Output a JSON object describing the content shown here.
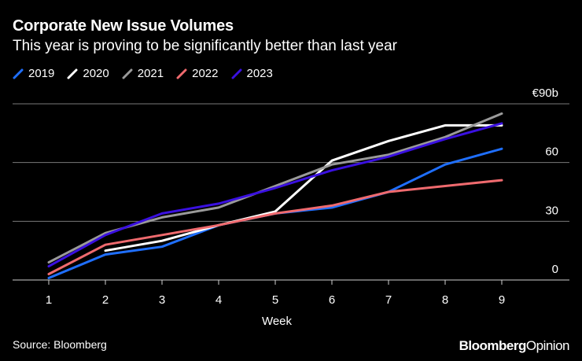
{
  "title": "Corporate New Issue Volumes",
  "subtitle": "This year is proving to be significantly better than last year",
  "source": "Source: Bloomberg",
  "brand": {
    "part1": "Bloomberg",
    "part2": "Opinion"
  },
  "colors": {
    "background": "#000000",
    "grid": "#7a7a7a",
    "text": "#ffffff",
    "s2019": "#1f6fff",
    "s2020": "#ffffff",
    "s2021": "#9a9a9a",
    "s2022": "#ef6a6e",
    "s2023": "#3a10e0"
  },
  "chart_data": {
    "type": "line",
    "title": "Corporate New Issue Volumes",
    "subtitle": "This year is proving to be significantly better than last year",
    "xlabel": "Week",
    "ylabel": "",
    "x": [
      1,
      2,
      3,
      4,
      5,
      6,
      7,
      8,
      9
    ],
    "ylim": [
      0,
      90
    ],
    "yticks": [
      0,
      30,
      60,
      90
    ],
    "ytick_labels": [
      "0",
      "30",
      "60",
      "€90b"
    ],
    "legend_position": "top-left",
    "grid": true,
    "series": [
      {
        "name": "2019",
        "color": "#1f6fff",
        "x": [
          1,
          2,
          3,
          4,
          5,
          6,
          7,
          8,
          9
        ],
        "values": [
          1,
          13,
          17,
          28,
          34,
          37,
          45,
          59,
          67
        ]
      },
      {
        "name": "2020",
        "color": "#ffffff",
        "x": [
          2,
          3,
          4,
          5,
          6,
          7,
          8,
          9
        ],
        "values": [
          15,
          20,
          28,
          35,
          61,
          71,
          79,
          79
        ]
      },
      {
        "name": "2021",
        "color": "#9a9a9a",
        "x": [
          1,
          2,
          3,
          4,
          5,
          6,
          7,
          8,
          9
        ],
        "values": [
          9,
          24,
          32,
          37,
          48,
          59,
          64,
          73,
          85
        ]
      },
      {
        "name": "2022",
        "color": "#ef6a6e",
        "x": [
          1,
          2,
          3,
          4,
          5,
          6,
          7,
          8,
          9
        ],
        "values": [
          3,
          18,
          23,
          28,
          34,
          38,
          45,
          48,
          51
        ]
      },
      {
        "name": "2023",
        "color": "#3a10e0",
        "x": [
          1,
          2,
          3,
          4,
          5,
          6,
          7,
          8,
          9
        ],
        "values": [
          7,
          23,
          34,
          39,
          47,
          56,
          63,
          72,
          80
        ]
      }
    ]
  }
}
